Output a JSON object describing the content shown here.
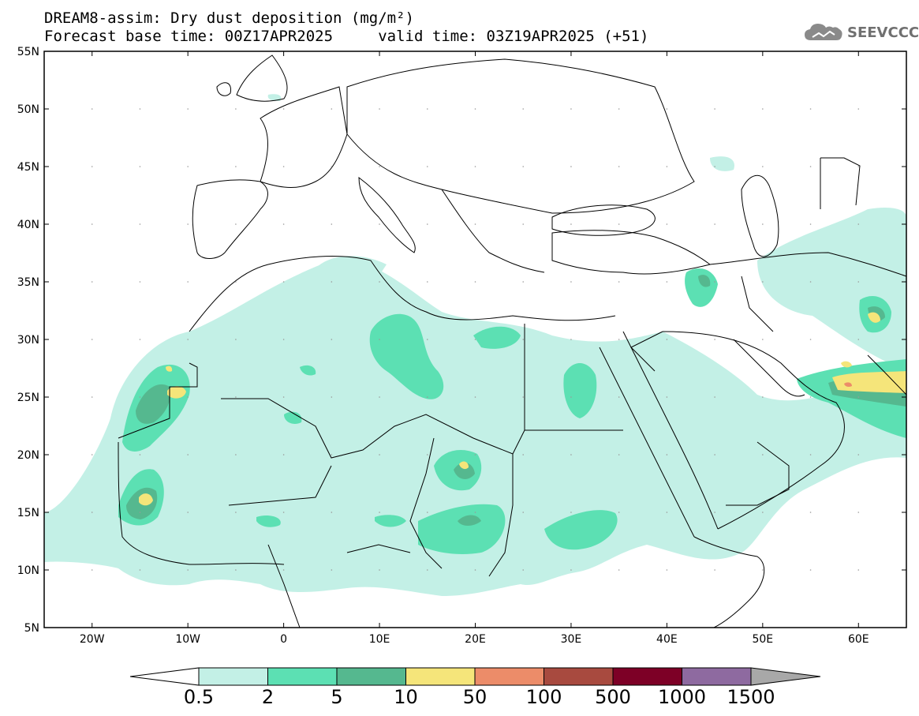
{
  "title": {
    "line1": "DREAM8-assim: Dry dust deposition (mg/m²)",
    "line2": "Forecast base time: 00Z17APR2025     valid time: 03Z19APR2025 (+51)"
  },
  "logo": {
    "icon": "cloud-icon",
    "text": "SEEVCCC"
  },
  "map": {
    "lon_range": [
      -25,
      65
    ],
    "lat_range": [
      5,
      55
    ],
    "lat_ticks": [
      "55N",
      "50N",
      "45N",
      "40N",
      "35N",
      "30N",
      "25N",
      "20N",
      "15N",
      "10N",
      "5N"
    ],
    "lon_ticks": [
      "20W",
      "10W",
      "0",
      "10E",
      "20E",
      "30E",
      "40E",
      "50E",
      "60E"
    ]
  },
  "legend": {
    "labels": [
      "0.5",
      "2",
      "5",
      "10",
      "50",
      "100",
      "500",
      "1000",
      "1500"
    ],
    "colors": [
      "#c3f0e6",
      "#5ce0b3",
      "#55b88f",
      "#f5e57a",
      "#ec8c69",
      "#a84a3f",
      "#7d0026",
      "#8e6aa0",
      "#a8a8a8"
    ]
  }
}
